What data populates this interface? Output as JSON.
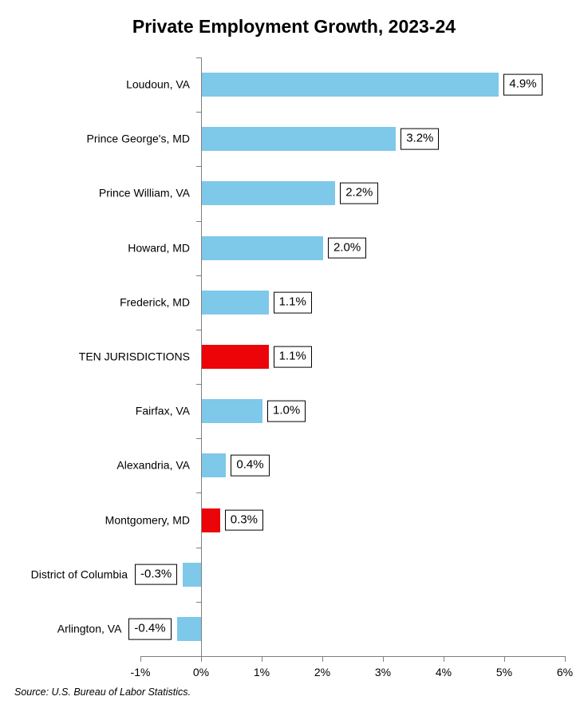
{
  "title": "Private Employment Growth, 2023-24",
  "source_note": "Source: U.S. Bureau of Labor Statistics.",
  "colors": {
    "bar": "#7EC8E9",
    "highlight_bar": "#EB0408",
    "axis": "#7F7F7F",
    "label_box_border": "#000000",
    "label_box_bg": "#FFFFFF",
    "text": "#000000"
  },
  "chart_data": {
    "type": "bar",
    "orientation": "horizontal",
    "title": "Private Employment Growth, 2023-24",
    "xlabel": "",
    "ylabel": "",
    "xlim": [
      -1,
      6
    ],
    "x_tick_labels": [
      "-1%",
      "0%",
      "1%",
      "2%",
      "3%",
      "4%",
      "5%",
      "6%"
    ],
    "x_tick_values": [
      -1,
      0,
      1,
      2,
      3,
      4,
      5,
      6
    ],
    "grid": false,
    "legend": false,
    "categories": [
      "Loudoun, VA",
      "Prince George's, MD",
      "Prince William, VA",
      "Howard, MD",
      "Frederick, MD",
      "TEN JURISDICTIONS",
      "Fairfax, VA",
      "Alexandria, VA",
      "Montgomery, MD",
      "District of Columbia",
      "Arlington, VA"
    ],
    "values": [
      4.9,
      3.2,
      2.2,
      2.0,
      1.1,
      1.1,
      1.0,
      0.4,
      0.3,
      -0.3,
      -0.4
    ],
    "value_labels": [
      "4.9%",
      "3.2%",
      "2.2%",
      "2.0%",
      "1.1%",
      "1.1%",
      "1.0%",
      "0.4%",
      "0.3%",
      "-0.3%",
      "-0.4%"
    ],
    "highlighted_categories": [
      "TEN JURISDICTIONS",
      "Montgomery, MD"
    ],
    "highlight_indices": [
      5,
      8
    ],
    "source": "Source: U.S. Bureau of Labor Statistics."
  }
}
